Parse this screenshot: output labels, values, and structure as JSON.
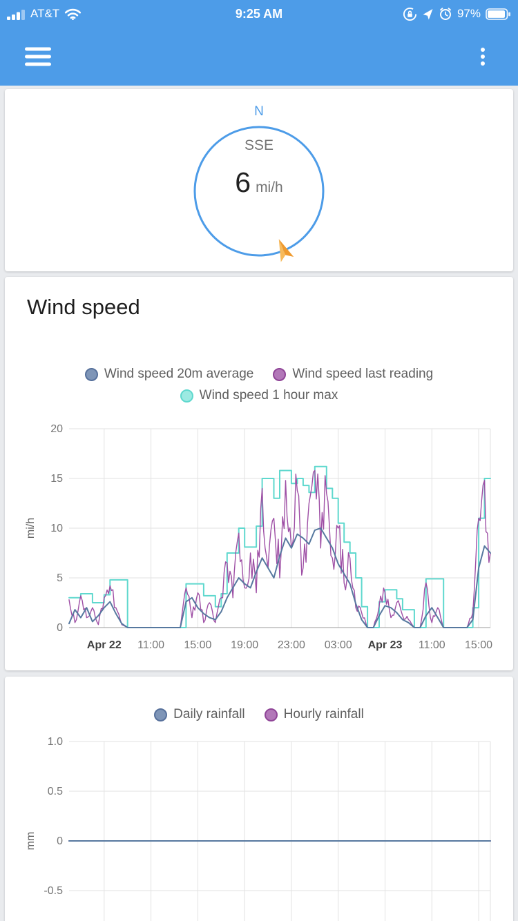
{
  "status_bar": {
    "carrier": "AT&T",
    "time": "9:25 AM",
    "battery_percent": "97%",
    "background": "#4D9CE8",
    "icons": [
      "signal-strength-icon",
      "wifi-icon",
      "orientation-lock-icon",
      "location-arrow-icon",
      "alarm-clock-icon",
      "battery-icon"
    ]
  },
  "header": {
    "background": "#4D9CE8",
    "icons": [
      "menu-icon",
      "kebab-menu-icon"
    ]
  },
  "compass": {
    "north_label": "N",
    "direction": "SSE",
    "speed_value": "6",
    "speed_unit": "mi/h",
    "ring_color": "#4D9CE8",
    "arrow_color": "#F2A33C"
  },
  "chart_data": [
    {
      "type": "line",
      "title": "Wind speed",
      "ylabel": "mi/h",
      "ylim": [
        0,
        20
      ],
      "yticks": [
        0,
        5,
        10,
        15,
        20
      ],
      "ytick_labels": [
        "0",
        "5",
        "10",
        "15",
        "20"
      ],
      "xlim_hours": [
        0,
        36
      ],
      "interval_hours": 0.5,
      "grid": true,
      "legend_position": "top",
      "xticks": [
        {
          "t": 3,
          "label": "Apr 22",
          "bold": true
        },
        {
          "t": 7,
          "label": "11:00"
        },
        {
          "t": 11,
          "label": "15:00"
        },
        {
          "t": 15,
          "label": "19:00"
        },
        {
          "t": 19,
          "label": "23:00"
        },
        {
          "t": 23,
          "label": "03:00"
        },
        {
          "t": 27,
          "label": "Apr 23",
          "bold": true
        },
        {
          "t": 31,
          "label": "11:00"
        },
        {
          "t": 35,
          "label": "15:00"
        }
      ],
      "series": [
        {
          "name": "Wind speed 20m average",
          "color": "#56789F",
          "marker_fill": "#7E95B7",
          "marker_border": "#56709B",
          "width": 2,
          "values": [
            0.4,
            1.8,
            1,
            2,
            0.6,
            1.2,
            2,
            2.6,
            1.4,
            0.4,
            0,
            0,
            0,
            0,
            0,
            0,
            0,
            0,
            0,
            0,
            2.6,
            3,
            2,
            1.4,
            1,
            0.8,
            1.6,
            3,
            4,
            5,
            4.4,
            4,
            5.6,
            7,
            6,
            5,
            7.2,
            9,
            8,
            9.4,
            9,
            8.4,
            9.8,
            10,
            9,
            8,
            6.4,
            5.4,
            4.4,
            2.4,
            0.8,
            0,
            0,
            1.2,
            2.2,
            2,
            1.5,
            0.8,
            0.5,
            0,
            0,
            1.2,
            2,
            1,
            0,
            0,
            0,
            0,
            0,
            0.8,
            6,
            8.2,
            7.5
          ]
        },
        {
          "name": "Wind speed last reading",
          "color": "#9E4FA5",
          "marker_fill": "#B277B8",
          "marker_border": "#8F4497",
          "width": 1.4,
          "noisy": true,
          "values": [
            2.8,
            0.5,
            3.2,
            1,
            2,
            0.3,
            3,
            4.2,
            2,
            0.3,
            0,
            0,
            0,
            0,
            0,
            0,
            0,
            0,
            0,
            0,
            4,
            1,
            3.5,
            0.5,
            2.5,
            0.5,
            3,
            6.5,
            3,
            9.5,
            4,
            7.5,
            3.5,
            14,
            6,
            11,
            5,
            14.8,
            8,
            13.8,
            6,
            12.5,
            15.8,
            8,
            13.5,
            7,
            10,
            4.5,
            7,
            2,
            1.5,
            0,
            0,
            2.2,
            3.5,
            1,
            2.5,
            1.2,
            0.8,
            0,
            0,
            4.5,
            0.5,
            2,
            0,
            0,
            0,
            0,
            0,
            1.5,
            11,
            14.8,
            7.5
          ]
        },
        {
          "name": "Wind speed 1 hour max",
          "color": "#5FD8CE",
          "marker_fill": "#9CEAE2",
          "marker_border": "#5FD8CE",
          "width": 2,
          "step": true,
          "values": [
            3,
            3,
            3.4,
            3.4,
            2.5,
            2.5,
            3.3,
            4.8,
            4.8,
            4.8,
            0,
            0,
            0,
            0,
            0,
            0,
            0,
            0,
            0,
            0,
            4.4,
            4.4,
            4.4,
            3.2,
            3.2,
            2.1,
            3.4,
            7.5,
            7.5,
            10,
            8.1,
            8.1,
            10.2,
            15,
            15,
            13,
            15.8,
            15.8,
            14.5,
            15,
            14.3,
            13.6,
            16.2,
            16.2,
            14,
            13,
            10.5,
            8.6,
            7.5,
            5,
            2.1,
            0,
            0,
            2.6,
            3.8,
            3.8,
            2.9,
            1.8,
            1.8,
            0,
            0,
            4.9,
            4.9,
            4.9,
            0,
            0,
            0,
            0,
            0,
            2,
            11,
            15,
            15
          ]
        }
      ]
    },
    {
      "type": "line",
      "title": "",
      "ylabel": "mm",
      "ylim": [
        -1,
        1
      ],
      "yticks": [
        1,
        0.5,
        0,
        -0.5
      ],
      "ytick_labels": [
        "1.0",
        "0.5",
        "0",
        "-0.5"
      ],
      "xlim_hours": [
        0,
        36
      ],
      "grid": true,
      "legend_position": "top",
      "xticks": [
        {
          "t": 3
        },
        {
          "t": 7
        },
        {
          "t": 11
        },
        {
          "t": 15
        },
        {
          "t": 19
        },
        {
          "t": 23
        },
        {
          "t": 27
        },
        {
          "t": 31
        },
        {
          "t": 35
        }
      ],
      "series": [
        {
          "name": "Daily rainfall",
          "color": "#56789F",
          "marker_fill": "#7E95B7",
          "marker_border": "#56709B",
          "width": 2,
          "values": [
            0,
            0
          ]
        },
        {
          "name": "Hourly rainfall",
          "color": "#9E4FA5",
          "marker_fill": "#B277B8",
          "marker_border": "#8F4497",
          "width": 2,
          "values": [
            0,
            0
          ]
        }
      ]
    }
  ]
}
